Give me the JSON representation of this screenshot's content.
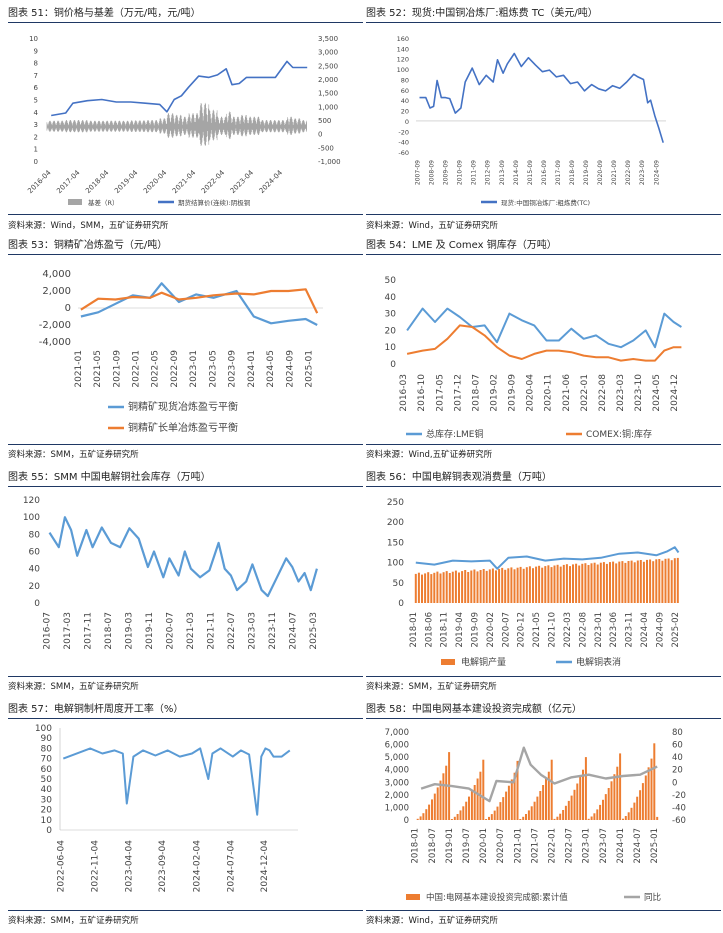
{
  "colors": {
    "blue": "#4472c4",
    "blue_light": "#5b9bd5",
    "orange": "#ed7d31",
    "gray": "#a5a5a5",
    "rule": "#1f3864"
  },
  "panels": [
    {
      "title": "图表 51：铜价格与基差（万元/吨，元/吨）",
      "source": "资料来源：Wind，SMM，五矿证券研究所"
    },
    {
      "title": "图表 52：现货:中国铜冶炼厂:粗炼费 TC（美元/吨）",
      "source": "资料来源：Wind，五矿证券研究所"
    },
    {
      "title": "图表 53：铜精矿冶炼盈亏（元/吨）",
      "source": "资料来源：SMM，五矿证券研究所"
    },
    {
      "title": "图表 54：LME 及 Comex 铜库存（万吨）",
      "source": "资料来源：Wind,五矿证券研究所"
    },
    {
      "title": "图表 55：SMM 中国电解铜社会库存（万吨）",
      "source": "资料来源：SMM，五矿证券研究所"
    },
    {
      "title": "图表 56：中国电解铜表观消费量（万吨）",
      "source": "资料来源：SMM，五矿证券研究所"
    },
    {
      "title": "图表 57：电解铜制杆周度开工率（%）",
      "source": "资料来源：SMM，五矿证券研究所"
    },
    {
      "title": "图表 58：中国电网基本建设投资完成额（亿元）",
      "source": "资料来源：Wind，五矿证券研究所"
    }
  ],
  "chart_data": [
    {
      "type": "line",
      "left_axis_ticks": [
        "0",
        "1",
        "2",
        "3",
        "4",
        "5",
        "6",
        "7",
        "8",
        "9",
        "10"
      ],
      "right_axis_ticks": [
        "-1,000",
        "-500",
        "0",
        "500",
        "1,000",
        "1,500",
        "2,000",
        "2,500",
        "3,000",
        "3,500"
      ],
      "ylim_left": [
        0,
        10
      ],
      "ylim_right": [
        -1000,
        3500
      ],
      "x_tick_labels": [
        "2016-04",
        "2017-04",
        "2018-04",
        "2019-04",
        "2020-04",
        "2021-04",
        "2022-04",
        "2023-04",
        "2024-04"
      ],
      "x": [
        2016.25,
        2016.75,
        2017.0,
        2017.5,
        2018.0,
        2018.5,
        2019.0,
        2019.5,
        2020.0,
        2020.25,
        2020.5,
        2020.75,
        2021.0,
        2021.35,
        2021.7,
        2022.0,
        2022.3,
        2022.5,
        2022.75,
        2023.0,
        2023.5,
        2024.0,
        2024.4,
        2024.6,
        2024.9,
        2025.1
      ],
      "series": [
        {
          "name": "基差（R）",
          "axis": "right",
          "band_center": 250,
          "band_halfwidth": [
            180,
            200,
            200,
            180,
            180,
            180,
            190,
            200,
            250,
            400,
            350,
            300,
            400,
            700,
            500,
            300,
            450,
            300,
            350,
            300,
            200,
            200,
            300,
            250,
            200,
            200
          ]
        },
        {
          "name": "期货结算价(连续):阴极铜",
          "axis": "left",
          "values": [
            3.7,
            3.9,
            4.7,
            4.9,
            5.0,
            4.8,
            4.8,
            4.7,
            4.6,
            4.0,
            5.0,
            5.3,
            6.0,
            6.9,
            6.8,
            7.0,
            7.5,
            6.2,
            6.3,
            6.8,
            6.8,
            6.8,
            8.1,
            7.6,
            7.6,
            7.6
          ]
        }
      ],
      "legend_position": "bottom"
    },
    {
      "type": "line",
      "y_axis_ticks": [
        "-60",
        "-40",
        "-20",
        "0",
        "20",
        "40",
        "60",
        "80",
        "100",
        "120",
        "140",
        "160"
      ],
      "ylim": [
        -60,
        160
      ],
      "x_tick_labels": [
        "2007-09",
        "2008-09",
        "2009-09",
        "2010-09",
        "2011-09",
        "2012-09",
        "2013-09",
        "2014-09",
        "2015-09",
        "2016-09",
        "2017-09",
        "2018-09",
        "2019-09",
        "2020-09",
        "2021-09",
        "2022-09",
        "2023-09",
        "2024-09"
      ],
      "x": [
        2007.75,
        2008.2,
        2008.5,
        2008.75,
        2009.0,
        2009.3,
        2009.6,
        2009.9,
        2010.3,
        2010.7,
        2011.0,
        2011.5,
        2012.0,
        2012.5,
        2013.0,
        2013.3,
        2013.7,
        2014.0,
        2014.5,
        2015.0,
        2015.5,
        2016.0,
        2016.5,
        2017.0,
        2017.5,
        2018.0,
        2018.5,
        2019.0,
        2019.5,
        2020.0,
        2020.5,
        2021.0,
        2021.5,
        2022.0,
        2022.5,
        2023.0,
        2023.3,
        2023.7,
        2024.0,
        2024.2,
        2024.5,
        2024.8,
        2025.1
      ],
      "series": [
        {
          "name": "现货:中国铜冶炼厂:粗炼费(TC)",
          "values": [
            45,
            45,
            25,
            28,
            78,
            45,
            45,
            43,
            15,
            25,
            75,
            102,
            70,
            88,
            75,
            118,
            92,
            110,
            130,
            105,
            122,
            108,
            95,
            98,
            85,
            88,
            72,
            75,
            58,
            70,
            62,
            58,
            68,
            63,
            75,
            90,
            85,
            80,
            35,
            40,
            10,
            -15,
            -42
          ]
        }
      ],
      "legend_position": "bottom"
    },
    {
      "type": "line",
      "y_axis_ticks": [
        "-4,000",
        "-2,000",
        "0",
        "2,000",
        "4,000"
      ],
      "ylim": [
        -4000,
        4000
      ],
      "x_tick_labels": [
        "2021-01",
        "2021-05",
        "2021-09",
        "2022-01",
        "2022-05",
        "2022-09",
        "2023-01",
        "2023-05",
        "2023-09",
        "2024-01",
        "2024-05",
        "2024-09",
        "2025-01"
      ],
      "x": [
        2021.0,
        2021.3,
        2021.6,
        2021.9,
        2022.2,
        2022.4,
        2022.7,
        2023.0,
        2023.3,
        2023.7,
        2024.0,
        2024.3,
        2024.6,
        2024.9,
        2025.1
      ],
      "series": [
        {
          "name": "铜精矿现货冶炼盈亏平衡",
          "values": [
            -1000,
            -500,
            500,
            1500,
            1200,
            2900,
            700,
            1600,
            1200,
            2000,
            -1000,
            -1800,
            -1500,
            -1300,
            -2000
          ]
        },
        {
          "name": "铜精矿长单冶炼盈亏平衡",
          "values": [
            -200,
            1100,
            1000,
            1300,
            1200,
            1800,
            1000,
            1200,
            1500,
            1700,
            1600,
            2000,
            2000,
            2200,
            -600
          ]
        }
      ],
      "legend_position": "bottom"
    },
    {
      "type": "line",
      "y_axis_ticks": [
        "0",
        "10",
        "20",
        "30",
        "40",
        "50"
      ],
      "ylim": [
        0,
        50
      ],
      "x_tick_labels": [
        "2016-03",
        "2016-10",
        "2017-05",
        "2017-12",
        "2018-07",
        "2019-02",
        "2019-09",
        "2020-04",
        "2020-11",
        "2021-06",
        "2022-01",
        "2022-08",
        "2023-03",
        "2023-10",
        "2024-05",
        "2024-12"
      ],
      "x": [
        2016.2,
        2016.7,
        2017.1,
        2017.5,
        2017.9,
        2018.3,
        2018.7,
        2019.1,
        2019.5,
        2019.9,
        2020.3,
        2020.7,
        2021.1,
        2021.5,
        2021.9,
        2022.3,
        2022.7,
        2023.1,
        2023.5,
        2023.9,
        2024.2,
        2024.5,
        2024.8,
        2025.05
      ],
      "series": [
        {
          "name": "总库存:LME铜",
          "values": [
            20,
            33,
            25,
            33,
            28,
            22,
            23,
            13,
            30,
            26,
            23,
            14,
            14,
            21,
            15,
            17,
            12,
            10,
            14,
            20,
            10,
            30,
            25,
            22
          ]
        },
        {
          "name": "COMEX:铜:库存",
          "values": [
            6,
            8,
            9,
            15,
            23,
            22,
            17,
            10,
            5,
            3,
            6,
            8,
            8,
            7,
            5,
            4,
            4,
            2,
            3,
            2,
            2,
            8,
            10,
            10
          ]
        }
      ],
      "legend_position": "bottom"
    },
    {
      "type": "line",
      "y_axis_ticks": [
        "0",
        "20",
        "40",
        "60",
        "80",
        "100",
        "120"
      ],
      "ylim": [
        0,
        120
      ],
      "x_tick_labels": [
        "2016-07",
        "2017-03",
        "2017-11",
        "2018-07",
        "2019-03",
        "2019-11",
        "2020-07",
        "2021-03",
        "2021-11",
        "2022-07",
        "2023-03",
        "2023-11",
        "2024-07",
        "2025-03"
      ],
      "x": [
        2016.5,
        2016.8,
        2017.0,
        2017.2,
        2017.4,
        2017.7,
        2017.9,
        2018.2,
        2018.5,
        2018.8,
        2019.1,
        2019.4,
        2019.7,
        2019.9,
        2020.2,
        2020.4,
        2020.7,
        2020.9,
        2021.1,
        2021.4,
        2021.7,
        2022.0,
        2022.2,
        2022.4,
        2022.6,
        2022.9,
        2023.1,
        2023.4,
        2023.6,
        2023.9,
        2024.2,
        2024.4,
        2024.6,
        2024.8,
        2025.0,
        2025.2
      ],
      "series": [
        {
          "name": "SMM中国电解铜社会库存",
          "values": [
            82,
            65,
            100,
            85,
            55,
            85,
            65,
            88,
            70,
            65,
            87,
            75,
            42,
            60,
            30,
            52,
            32,
            60,
            40,
            30,
            38,
            70,
            40,
            32,
            15,
            25,
            45,
            15,
            8,
            30,
            52,
            42,
            25,
            35,
            15,
            40
          ]
        }
      ]
    },
    {
      "type": "bar",
      "y_axis_ticks": [
        "0",
        "50",
        "100",
        "150",
        "200",
        "250"
      ],
      "ylim": [
        0,
        250
      ],
      "x_tick_labels": [
        "2018-01",
        "2018-06",
        "2018-11",
        "2019-04",
        "2019-09",
        "2020-02",
        "2020-07",
        "2020-12",
        "2021-05",
        "2021-10",
        "2022-03",
        "2022-08",
        "2023-01",
        "2023-06",
        "2023-11",
        "2024-04",
        "2024-09",
        "2025-02"
      ],
      "production_start": 72,
      "production_end": 110,
      "consumption_x": [
        2018.0,
        2018.5,
        2019.0,
        2019.5,
        2020.0,
        2020.2,
        2020.5,
        2021.0,
        2021.5,
        2022.0,
        2022.5,
        2023.0,
        2023.5,
        2024.0,
        2024.5,
        2024.8,
        2025.0,
        2025.1
      ],
      "consumption_values": [
        100,
        95,
        105,
        103,
        105,
        85,
        112,
        115,
        105,
        110,
        108,
        112,
        122,
        125,
        118,
        128,
        138,
        125
      ],
      "series_names": [
        "电解铜产量",
        "电解铜表消"
      ],
      "legend_position": "bottom"
    },
    {
      "type": "line",
      "y_axis_ticks": [
        "0",
        "10",
        "20",
        "30",
        "40",
        "50",
        "60",
        "70",
        "80",
        "90",
        "100"
      ],
      "ylim": [
        0,
        100
      ],
      "x_tick_labels": [
        "2022-06-04",
        "2022-11-04",
        "2023-04-04",
        "2023-09-04",
        "2024-02-04",
        "2024-07-04",
        "2024-12-04"
      ],
      "x": [
        2022.42,
        2022.75,
        2022.9,
        2023.05,
        2023.15,
        2023.2,
        2023.28,
        2023.4,
        2023.55,
        2023.7,
        2023.85,
        2024.0,
        2024.1,
        2024.2,
        2024.25,
        2024.35,
        2024.5,
        2024.6,
        2024.7,
        2024.8,
        2024.85,
        2024.9,
        2024.95,
        2025.0,
        2025.1,
        2025.2
      ],
      "series": [
        {
          "name": "电解铜制杆周度开工率",
          "values": [
            70,
            80,
            75,
            78,
            75,
            26,
            72,
            78,
            73,
            78,
            72,
            75,
            80,
            50,
            75,
            80,
            72,
            78,
            74,
            15,
            72,
            80,
            78,
            72,
            72,
            78
          ]
        }
      ]
    },
    {
      "type": "bar",
      "left_axis_ticks": [
        "0",
        "1,000",
        "2,000",
        "3,000",
        "4,000",
        "5,000",
        "6,000",
        "7,000"
      ],
      "right_axis_ticks": [
        "-60",
        "-40",
        "-20",
        "0",
        "20",
        "40",
        "60",
        "80"
      ],
      "ylim_left": [
        0,
        7000
      ],
      "ylim_right": [
        -60,
        80
      ],
      "x_tick_labels": [
        "2018-01",
        "2018-07",
        "2019-01",
        "2019-07",
        "2020-01",
        "2020-07",
        "2021-01",
        "2021-07",
        "2022-01",
        "2022-07",
        "2023-01",
        "2023-07",
        "2024-01",
        "2024-07",
        "2025-01"
      ],
      "year_end_bars": [
        {
          "year": 2018,
          "peak": 5400
        },
        {
          "year": 2019,
          "peak": 4800
        },
        {
          "year": 2020,
          "peak": 4700
        },
        {
          "year": 2021,
          "peak": 4800
        },
        {
          "year": 2022,
          "peak": 5000
        },
        {
          "year": 2023,
          "peak": 5300
        },
        {
          "year": 2024,
          "peak": 6100
        }
      ],
      "yoy_x": [
        2018.1,
        2018.5,
        2019.0,
        2019.5,
        2020.1,
        2020.3,
        2020.8,
        2021.1,
        2021.3,
        2021.6,
        2022.0,
        2022.5,
        2023.0,
        2023.5,
        2024.0,
        2024.5,
        2025.0
      ],
      "yoy_values": [
        -10,
        -3,
        -6,
        -10,
        -30,
        2,
        0,
        55,
        28,
        12,
        -2,
        8,
        12,
        6,
        10,
        12,
        25
      ],
      "series_names": [
        "中国:电网基本建设投资完成额:累计值",
        "同比"
      ],
      "legend_position": "bottom"
    }
  ]
}
